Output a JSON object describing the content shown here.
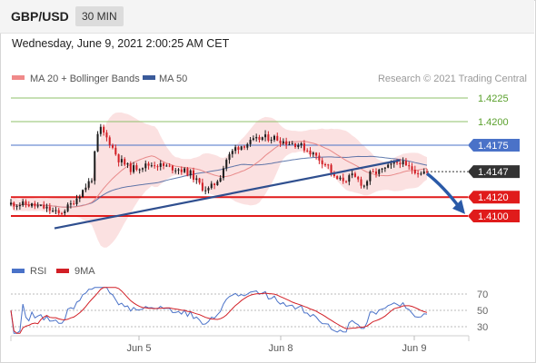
{
  "header": {
    "symbol": "GBP/USD",
    "interval": "30 MIN",
    "datetime": "Wednesday, June 9, 2021 2:00:25 AM CET"
  },
  "legend": {
    "ma20_bb": "MA 20 + Bollinger Bands",
    "ma50": "MA 50",
    "credit": "Research © 2021 Trading Central"
  },
  "colors": {
    "up": "#1c1c1c",
    "down": "#d21f26",
    "bollinger": "#f7c9c9",
    "ma20": "#e88a8a",
    "ma50": "#3a5a9a",
    "resistance": "#8fc06a",
    "pivot": "#4a72c8",
    "support": "#e01b1b",
    "current": "#333333",
    "rsi": "#4a72c8",
    "rsi_ma": "#d21f26"
  },
  "chart_data": [
    {
      "type": "candlestick",
      "title": "",
      "x_labels": [
        "Jun 5",
        "Jun 8",
        "Jun 9"
      ],
      "y_labels_shown": false,
      "levels": [
        {
          "value": 1.4225,
          "label": "1.4225",
          "kind": "resistance"
        },
        {
          "value": 1.42,
          "label": "1.4200",
          "kind": "resistance"
        },
        {
          "value": 1.4175,
          "label": "1.4175",
          "kind": "pivot"
        },
        {
          "value": 1.4147,
          "label": "1.4147",
          "kind": "current"
        },
        {
          "value": 1.412,
          "label": "1.4120",
          "kind": "support"
        },
        {
          "value": 1.41,
          "label": "1.4100",
          "kind": "support"
        }
      ],
      "series": [
        {
          "name": "MA 20 + Bollinger Bands",
          "role": "ma20"
        },
        {
          "name": "MA 50",
          "role": "ma50"
        }
      ],
      "trendline": {
        "from": 1.4087,
        "to": 1.4159
      },
      "forecast_arrow": {
        "from": 1.4145,
        "to": 1.4102
      }
    },
    {
      "type": "line",
      "title": "",
      "series": [
        {
          "name": "RSI",
          "role": "rsi"
        },
        {
          "name": "9MA",
          "role": "rsi_ma"
        }
      ],
      "ylim": [
        20,
        80
      ],
      "y_ticks": [
        "70",
        "50",
        "30"
      ]
    }
  ]
}
